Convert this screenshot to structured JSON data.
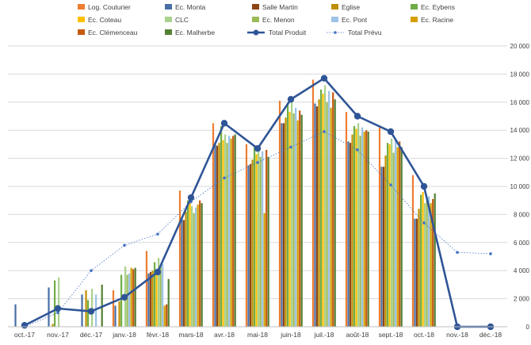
{
  "chart_data": {
    "type": "bar",
    "title": "",
    "xlabel": "",
    "ylabel": "",
    "ylim": [
      0,
      20000
    ],
    "y_ticks": [
      0,
      2000,
      4000,
      6000,
      8000,
      10000,
      12000,
      14000,
      16000,
      18000,
      20000
    ],
    "y_tick_labels": [
      "0",
      "2 000",
      "4 000",
      "6 000",
      "8 000",
      "10 000",
      "12 000",
      "14 000",
      "16 000",
      "18 000",
      "20 000"
    ],
    "grid": true,
    "legend_position": "top",
    "categories": [
      "oct.-17",
      "nov.-17",
      "déc.-17",
      "janv.-18",
      "févr.-18",
      "mars-18",
      "avr.-18",
      "mai-18",
      "juin-18",
      "juil.-18",
      "août-18",
      "sept.-18",
      "oct.-18",
      "nov.-18",
      "déc.-18"
    ],
    "bar_series": [
      {
        "name": "Log. Couturier",
        "color": "#ED7D31",
        "values": [
          null,
          null,
          null,
          2600,
          5400,
          9700,
          14500,
          13000,
          16100,
          17600,
          15300,
          14200,
          10800,
          null,
          null
        ]
      },
      {
        "name": "Ec. Monta",
        "color": "#4A6FA5",
        "values": [
          1600,
          2800,
          2300,
          1500,
          3800,
          7800,
          13000,
          11500,
          14500,
          15900,
          13200,
          11400,
          7700,
          null,
          null
        ]
      },
      {
        "name": "Salle Martin",
        "color": "#8B4513",
        "values": [
          null,
          null,
          null,
          null,
          3900,
          7600,
          12900,
          11600,
          14500,
          15700,
          13100,
          11400,
          7700,
          null,
          null
        ]
      },
      {
        "name": "Eglise",
        "color": "#BF9000",
        "values": [
          null,
          200,
          2600,
          1800,
          4000,
          8200,
          13100,
          11900,
          14900,
          16200,
          13700,
          12200,
          8400,
          null,
          null
        ]
      },
      {
        "name": "Ec. Eybens",
        "color": "#70AD47",
        "values": [
          null,
          3300,
          1900,
          3700,
          4600,
          9000,
          14300,
          12800,
          15800,
          16900,
          14300,
          13100,
          9400,
          null,
          null
        ]
      },
      {
        "name": "Ec. Coteau",
        "color": "#FFC000",
        "values": [
          null,
          null,
          null,
          null,
          3700,
          8900,
          13300,
          12300,
          15300,
          16600,
          14100,
          13000,
          9600,
          null,
          null
        ]
      },
      {
        "name": "CLC",
        "color": "#A9D18E",
        "values": [
          null,
          3500,
          2700,
          4300,
          4900,
          8600,
          13700,
          12600,
          16000,
          17200,
          14500,
          13400,
          8800,
          null,
          null
        ]
      },
      {
        "name": "Ec. Menon",
        "color": "#9BBB59",
        "values": [
          null,
          null,
          null,
          3700,
          4400,
          8100,
          13100,
          12100,
          15200,
          16000,
          13600,
          12400,
          9000,
          null,
          null
        ]
      },
      {
        "name": "Ec. Pont",
        "color": "#9DC3E6",
        "values": [
          null,
          null,
          2300,
          3800,
          4500,
          8500,
          13600,
          12500,
          15600,
          16800,
          14200,
          13300,
          9300,
          null,
          null
        ]
      },
      {
        "name": "Ec. Racine",
        "color": "#D4A000",
        "values": [
          null,
          null,
          null,
          4200,
          1500,
          8700,
          13400,
          8100,
          14700,
          15600,
          13900,
          12800,
          8800,
          null,
          null
        ]
      },
      {
        "name": "Ec. Clémenceau",
        "color": "#C55A11",
        "values": [
          null,
          null,
          null,
          4100,
          1600,
          9000,
          13600,
          12600,
          15400,
          16700,
          14000,
          13200,
          9100,
          null,
          null
        ]
      },
      {
        "name": "Ec. Malherbe",
        "color": "#548235",
        "values": [
          null,
          null,
          3000,
          4200,
          3400,
          8800,
          13700,
          12100,
          15100,
          16200,
          13900,
          12800,
          9500,
          null,
          null
        ]
      }
    ],
    "line_series": [
      {
        "name": "Total Produit",
        "color": "#2F5597",
        "values": [
          100,
          1300,
          1100,
          2100,
          3900,
          9200,
          14500,
          12700,
          16200,
          17700,
          15000,
          13900,
          10000,
          0,
          0
        ]
      },
      {
        "name": "Total Prévu",
        "color": "#4472C4",
        "values": [
          0,
          1000,
          4000,
          5800,
          6600,
          8900,
          10600,
          11700,
          12800,
          13900,
          12600,
          10100,
          7400,
          5300,
          5200
        ]
      }
    ]
  }
}
